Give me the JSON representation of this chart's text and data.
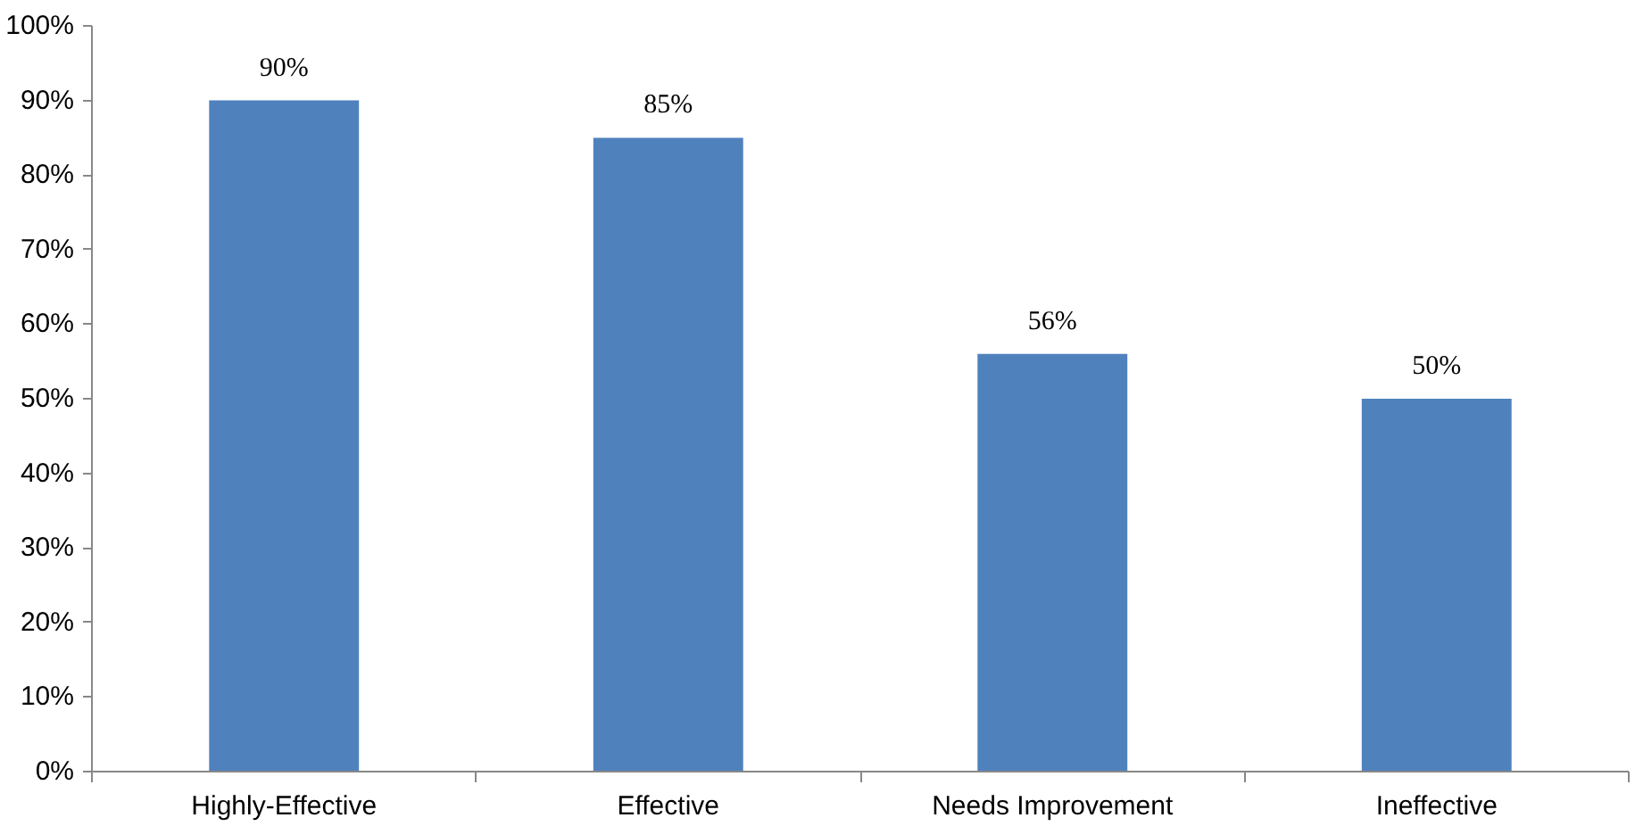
{
  "chart_data": {
    "type": "bar",
    "categories": [
      "Highly-Effective",
      "Effective",
      "Needs Improvement",
      "Ineffective"
    ],
    "values": [
      90,
      85,
      56,
      50
    ],
    "value_labels": [
      "90%",
      "85%",
      "56%",
      "50%"
    ],
    "color": "#4f81bd",
    "ylim": [
      0,
      100
    ],
    "yticks": [
      {
        "value": 0,
        "label": "0%"
      },
      {
        "value": 10,
        "label": "10%"
      },
      {
        "value": 20,
        "label": "20%"
      },
      {
        "value": 30,
        "label": "30%"
      },
      {
        "value": 40,
        "label": "40%"
      },
      {
        "value": 50,
        "label": "50%"
      },
      {
        "value": 60,
        "label": "60%"
      },
      {
        "value": 70,
        "label": "70%"
      },
      {
        "value": 80,
        "label": "80%"
      },
      {
        "value": 90,
        "label": "90%"
      },
      {
        "value": 100,
        "label": "100%"
      }
    ],
    "grid": false
  }
}
